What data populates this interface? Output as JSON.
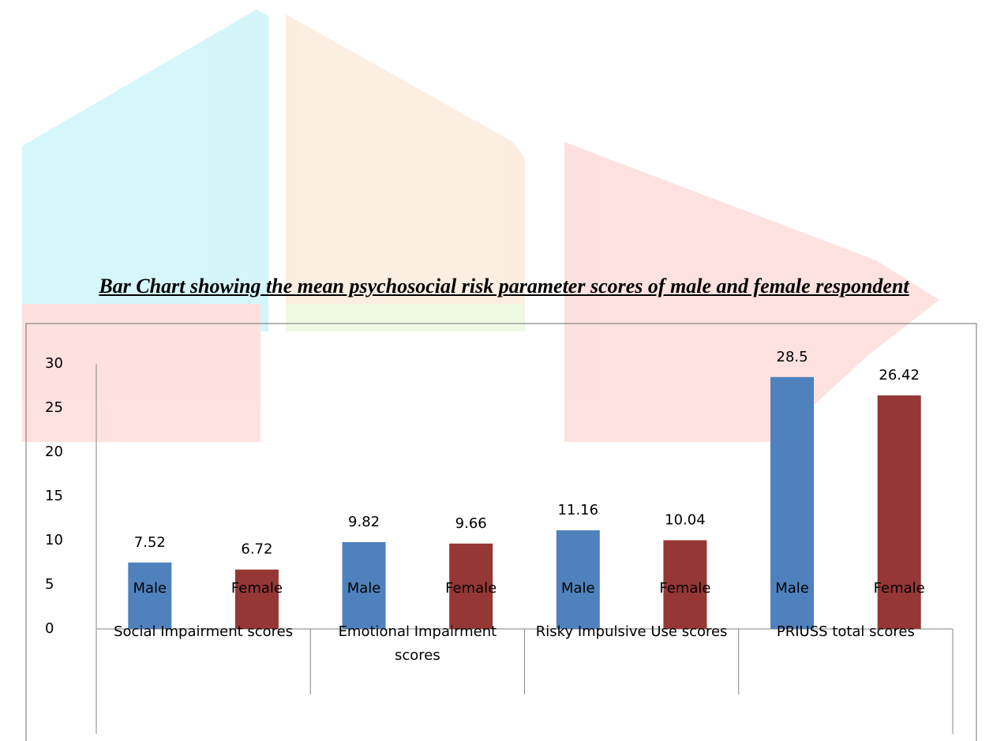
{
  "chart_data": {
    "type": "bar",
    "title": "Bar Chart showing the mean psychosocial risk parameter scores of male and female respondent",
    "categories": [
      "Male",
      "Female",
      "Male",
      "Female",
      "Male",
      "Female",
      "Male",
      "Female"
    ],
    "groups": [
      "Social Impairment scores",
      "Emotional Impairment scores",
      "Risky Impulsive Use scores",
      "PRIUSS total scores"
    ],
    "values": [
      7.52,
      6.72,
      9.82,
      9.66,
      11.16,
      10.04,
      28.5,
      26.42
    ],
    "colors": [
      "#4f81bd",
      "#953735",
      "#4f81bd",
      "#953735",
      "#4f81bd",
      "#953735",
      "#4f81bd",
      "#953735"
    ],
    "ylim": [
      0,
      30
    ],
    "yticks": [
      0,
      5,
      10,
      15,
      20,
      25,
      30
    ],
    "grid": false
  }
}
